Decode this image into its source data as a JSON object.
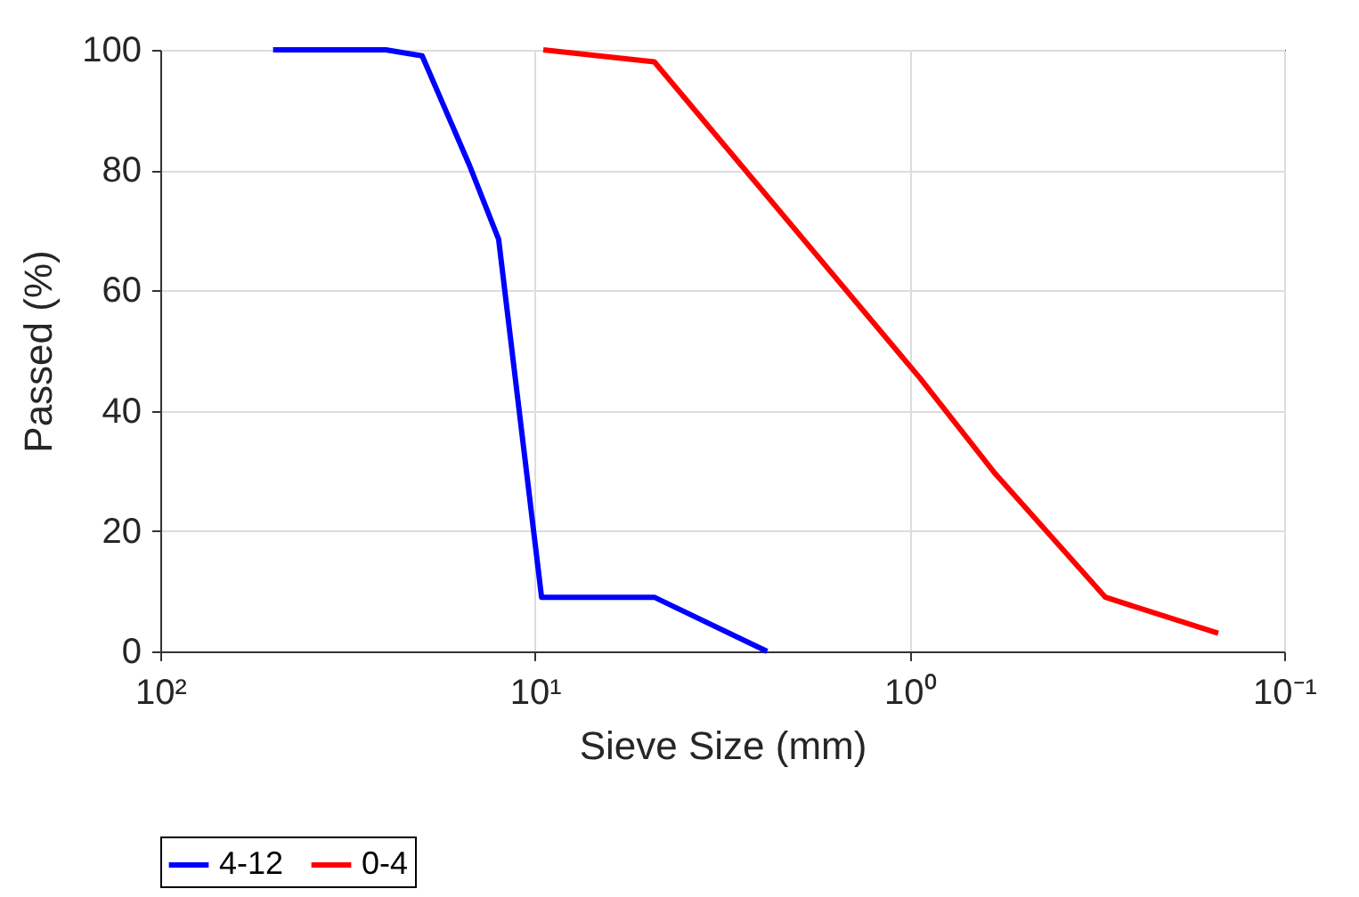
{
  "chart_data": {
    "type": "line",
    "xlabel": "Sieve Size (mm)",
    "ylabel": "Passed (%)",
    "log": "x",
    "grid": true,
    "legend": "bottom",
    "xlim": [
      100,
      0.1
    ],
    "xticks": [
      {
        "value": 100,
        "label": "10²"
      },
      {
        "value": 10,
        "label": "10¹"
      },
      {
        "value": 1,
        "label": "10⁰"
      },
      {
        "value": 0.1,
        "label": "10⁻¹"
      }
    ],
    "ylim": [
      0,
      100
    ],
    "yticks": [
      0,
      20,
      40,
      60,
      80,
      100
    ],
    "series": [
      {
        "name": "4-12",
        "color": "#0000ff",
        "x": [
          50,
          25,
          20,
          15,
          12.5,
          9.6,
          4.8,
          2.4
        ],
        "values": [
          100,
          100,
          99,
          81,
          68.5,
          9,
          9,
          0
        ]
      },
      {
        "name": "0-4",
        "color": "#ff0000",
        "x": [
          9.5,
          4.8,
          0.94,
          0.59,
          0.3,
          0.15
        ],
        "values": [
          100,
          98,
          45.5,
          29.5,
          9,
          3
        ]
      }
    ]
  }
}
